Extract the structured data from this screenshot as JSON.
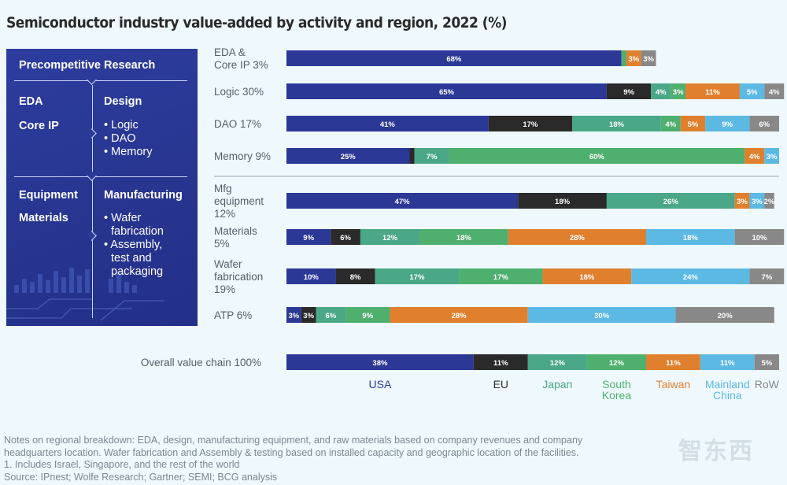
{
  "title": "Semiconductor industry value-added by activity and region, 2022 (%)",
  "panel": {
    "header": "Precompetitive Research",
    "left_top": [
      "EDA",
      "Core IP"
    ],
    "design_title": "Design",
    "design_items": [
      "• Logic",
      "• DAO",
      "• Memory"
    ],
    "left_bottom": [
      "Equipment",
      "Materials"
    ],
    "manufacturing_title": "Manufacturing",
    "manufacturing_items": [
      "• Wafer",
      "fabrication",
      "• Assembly,",
      "test and",
      "packaging"
    ]
  },
  "colors": {
    "USA": "#2b3896",
    "EU": "#2a2a2a",
    "Japan": "#4aa787",
    "South Korea": "#4faf6e",
    "Taiwan": "#e0802e",
    "Mainland China": "#5cb9e4",
    "RoW": "#888888",
    "separator": "#9aa5b1",
    "label": "#555f6a"
  },
  "legend": [
    {
      "name": "USA",
      "lines": [
        "USA"
      ],
      "color": "#2b3896"
    },
    {
      "name": "EU",
      "lines": [
        "EU"
      ],
      "color": "#2a2a2a"
    },
    {
      "name": "Japan",
      "lines": [
        "Japan"
      ],
      "color": "#4aa787"
    },
    {
      "name": "South Korea",
      "lines": [
        "South",
        "Korea"
      ],
      "color": "#4faf6e"
    },
    {
      "name": "Taiwan",
      "lines": [
        "Taiwan"
      ],
      "color": "#e0802e"
    },
    {
      "name": "Mainland China",
      "lines": [
        "Mainland",
        "China"
      ],
      "color": "#5cb9e4"
    },
    {
      "name": "RoW",
      "lines": [
        "RoW"
      ],
      "color": "#888888"
    }
  ],
  "chart_data": {
    "type": "bar",
    "orientation": "horizontal-stacked-100",
    "title": "Semiconductor industry value-added by activity and region, 2022 (%)",
    "series_names": [
      "USA",
      "EU",
      "Japan",
      "South Korea",
      "Taiwan",
      "Mainland China",
      "RoW"
    ],
    "rows": [
      {
        "label_lines": [
          "EDA &",
          "Core IP 3%"
        ],
        "values": [
          68,
          0,
          0,
          1,
          3,
          0,
          3
        ],
        "labels": [
          "68%",
          "",
          "",
          "",
          "3%",
          "",
          "3%"
        ],
        "group": "research"
      },
      {
        "label_lines": [
          "Logic 30%"
        ],
        "values": [
          65,
          9,
          4,
          3,
          11,
          5,
          4
        ],
        "labels": [
          "65%",
          "9%",
          "4%",
          "3%",
          "11%",
          "5%",
          "4%"
        ],
        "group": "design"
      },
      {
        "label_lines": [
          "DAO 17%"
        ],
        "values": [
          41,
          17,
          18,
          4,
          5,
          9,
          6
        ],
        "labels": [
          "41%",
          "17%",
          "18%",
          "4%",
          "5%",
          "9%",
          "6%"
        ],
        "group": "design"
      },
      {
        "label_lines": [
          "Memory 9%"
        ],
        "values": [
          25,
          1,
          7,
          60,
          4,
          3,
          0
        ],
        "labels": [
          "25%",
          "",
          "7%",
          "60%",
          "4%",
          "3%",
          ""
        ],
        "group": "design"
      },
      {
        "label_lines": [
          "Mfg",
          "equipment",
          "12%"
        ],
        "values": [
          47,
          18,
          26,
          0,
          3,
          3,
          2
        ],
        "labels": [
          "47%",
          "18%",
          "26%",
          "",
          "3%",
          "3%",
          "2%"
        ],
        "group": "manufacturing"
      },
      {
        "label_lines": [
          "Materials",
          "5%"
        ],
        "values": [
          9,
          6,
          12,
          18,
          28,
          18,
          10
        ],
        "labels": [
          "9%",
          "6%",
          "12%",
          "18%",
          "28%",
          "18%",
          "10%"
        ],
        "group": "manufacturing"
      },
      {
        "label_lines": [
          "Wafer",
          "fabrication",
          "19%"
        ],
        "values": [
          10,
          8,
          17,
          17,
          18,
          24,
          7
        ],
        "labels": [
          "10%",
          "8%",
          "17%",
          "17%",
          "18%",
          "24%",
          "7%"
        ],
        "group": "manufacturing"
      },
      {
        "label_lines": [
          "ATP 6%"
        ],
        "values": [
          3,
          3,
          6,
          9,
          28,
          30,
          20
        ],
        "labels": [
          "3%",
          "3%",
          "6%",
          "9%",
          "28%",
          "30%",
          "20%"
        ],
        "group": "manufacturing"
      }
    ],
    "overall": {
      "label": "Overall value chain 100%",
      "values": [
        38,
        11,
        12,
        12,
        11,
        11,
        5
      ],
      "labels": [
        "38%",
        "11%",
        "12%",
        "12%",
        "11%",
        "11%",
        "5%"
      ]
    },
    "xlim": [
      0,
      100
    ]
  },
  "notes": [
    "Notes on regional breakdown: EDA, design, manufacturing equipment, and raw materials based on company revenues and company",
    "headquarters location. Wafer fabrication and Assembly & testing based on installed capacity and geographic location of the facilities.",
    "1. Includes Israel, Singapore, and the rest of the world",
    "Source: IPnest; Wolfe Research; Gartner; SEMI; BCG analysis"
  ],
  "watermark": "智东西"
}
